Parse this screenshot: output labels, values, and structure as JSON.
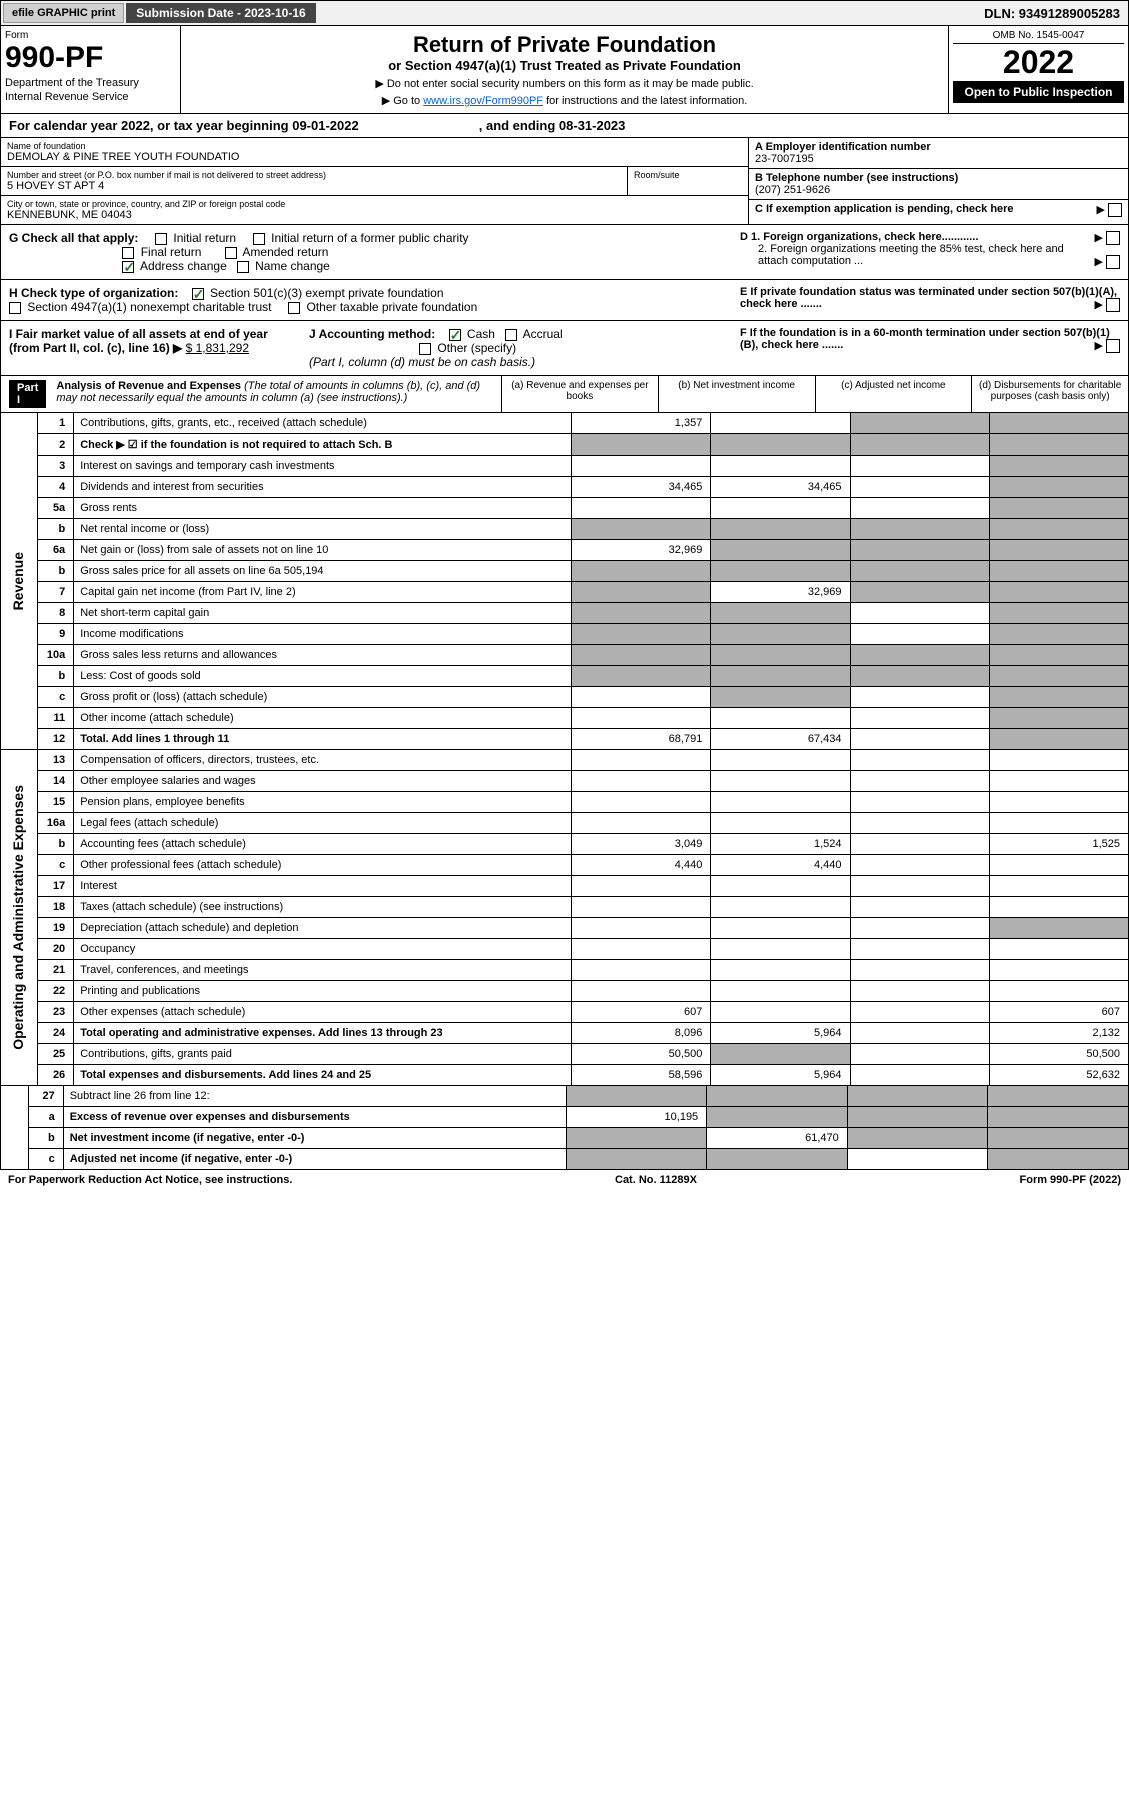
{
  "top": {
    "efile_btn": "efile GRAPHIC print",
    "submission": "Submission Date - 2023-10-16",
    "dln": "DLN: 93491289005283"
  },
  "header": {
    "form_label": "Form",
    "form_number": "990-PF",
    "dept": "Department of the Treasury",
    "irs": "Internal Revenue Service",
    "title": "Return of Private Foundation",
    "subtitle": "or Section 4947(a)(1) Trust Treated as Private Foundation",
    "note1": "▶ Do not enter social security numbers on this form as it may be made public.",
    "note2_pre": "▶ Go to ",
    "note2_link": "www.irs.gov/Form990PF",
    "note2_post": " for instructions and the latest information.",
    "omb": "OMB No. 1545-0047",
    "year": "2022",
    "open": "Open to Public Inspection"
  },
  "calyear": {
    "text": "For calendar year 2022, or tax year beginning 09-01-2022",
    "ending": ", and ending 08-31-2023"
  },
  "info": {
    "name_label": "Name of foundation",
    "name": "DEMOLAY & PINE TREE YOUTH FOUNDATIO",
    "addr_label": "Number and street (or P.O. box number if mail is not delivered to street address)",
    "addr": "5 HOVEY ST APT 4",
    "room_label": "Room/suite",
    "city_label": "City or town, state or province, country, and ZIP or foreign postal code",
    "city": "KENNEBUNK, ME  04043",
    "ein_label": "A Employer identification number",
    "ein": "23-7007195",
    "phone_label": "B Telephone number (see instructions)",
    "phone": "(207) 251-9626",
    "c_label": "C If exemption application is pending, check here",
    "d1": "D 1. Foreign organizations, check here............",
    "d2": "2. Foreign organizations meeting the 85% test, check here and attach computation ...",
    "e_label": "E  If private foundation status was terminated under section 507(b)(1)(A), check here .......",
    "f_label": "F  If the foundation is in a 60-month termination under section 507(b)(1)(B), check here ......."
  },
  "checks": {
    "g_label": "G Check all that apply:",
    "initial": "Initial return",
    "initial_former": "Initial return of a former public charity",
    "final": "Final return",
    "amended": "Amended return",
    "address": "Address change",
    "namechange": "Name change",
    "h_label": "H Check type of organization:",
    "h501c3": "Section 501(c)(3) exempt private foundation",
    "h4947": "Section 4947(a)(1) nonexempt charitable trust",
    "hother": "Other taxable private foundation",
    "i_label": "I Fair market value of all assets at end of year (from Part II, col. (c), line 16) ▶",
    "i_value": "$  1,831,292",
    "j_label": "J Accounting method:",
    "j_cash": "Cash",
    "j_accrual": "Accrual",
    "j_other": "Other (specify)",
    "j_note": "(Part I, column (d) must be on cash basis.)"
  },
  "part1": {
    "label": "Part I",
    "title": "Analysis of Revenue and Expenses",
    "title_note": " (The total of amounts in columns (b), (c), and (d) may not necessarily equal the amounts in column (a) (see instructions).)",
    "col_a": "(a)   Revenue and expenses per books",
    "col_b": "(b)   Net investment income",
    "col_c": "(c)   Adjusted net income",
    "col_d": "(d)  Disbursements for charitable purposes (cash basis only)"
  },
  "sidelabels": {
    "revenue": "Revenue",
    "expenses": "Operating and Administrative Expenses"
  },
  "rows": [
    {
      "n": "1",
      "d": "Contributions, gifts, grants, etc., received (attach schedule)",
      "a": "1,357",
      "b": "",
      "c": "shaded",
      "dcol": "shaded"
    },
    {
      "n": "2",
      "d": "Check ▶ ☑ if the foundation is not required to attach Sch. B",
      "a": "shaded",
      "b": "shaded",
      "c": "shaded",
      "dcol": "shaded",
      "bold": true
    },
    {
      "n": "3",
      "d": "Interest on savings and temporary cash investments",
      "a": "",
      "b": "",
      "c": "",
      "dcol": "shaded"
    },
    {
      "n": "4",
      "d": "Dividends and interest from securities",
      "a": "34,465",
      "b": "34,465",
      "c": "",
      "dcol": "shaded"
    },
    {
      "n": "5a",
      "d": "Gross rents",
      "a": "",
      "b": "",
      "c": "",
      "dcol": "shaded"
    },
    {
      "n": "b",
      "d": "Net rental income or (loss)",
      "a": "shaded",
      "b": "shaded",
      "c": "shaded",
      "dcol": "shaded"
    },
    {
      "n": "6a",
      "d": "Net gain or (loss) from sale of assets not on line 10",
      "a": "32,969",
      "b": "shaded",
      "c": "shaded",
      "dcol": "shaded"
    },
    {
      "n": "b",
      "d": "Gross sales price for all assets on line 6a             505,194",
      "a": "shaded",
      "b": "shaded",
      "c": "shaded",
      "dcol": "shaded"
    },
    {
      "n": "7",
      "d": "Capital gain net income (from Part IV, line 2)",
      "a": "shaded",
      "b": "32,969",
      "c": "shaded",
      "dcol": "shaded"
    },
    {
      "n": "8",
      "d": "Net short-term capital gain",
      "a": "shaded",
      "b": "shaded",
      "c": "",
      "dcol": "shaded"
    },
    {
      "n": "9",
      "d": "Income modifications",
      "a": "shaded",
      "b": "shaded",
      "c": "",
      "dcol": "shaded"
    },
    {
      "n": "10a",
      "d": "Gross sales less returns and allowances",
      "a": "shaded",
      "b": "shaded",
      "c": "shaded",
      "dcol": "shaded"
    },
    {
      "n": "b",
      "d": "Less: Cost of goods sold",
      "a": "shaded",
      "b": "shaded",
      "c": "shaded",
      "dcol": "shaded"
    },
    {
      "n": "c",
      "d": "Gross profit or (loss) (attach schedule)",
      "a": "",
      "b": "shaded",
      "c": "",
      "dcol": "shaded"
    },
    {
      "n": "11",
      "d": "Other income (attach schedule)",
      "a": "",
      "b": "",
      "c": "",
      "dcol": "shaded"
    },
    {
      "n": "12",
      "d": "Total. Add lines 1 through 11",
      "a": "68,791",
      "b": "67,434",
      "c": "",
      "dcol": "shaded",
      "bold": true
    }
  ],
  "exp_rows": [
    {
      "n": "13",
      "d": "Compensation of officers, directors, trustees, etc.",
      "a": "",
      "b": "",
      "c": "",
      "dcol": ""
    },
    {
      "n": "14",
      "d": "Other employee salaries and wages",
      "a": "",
      "b": "",
      "c": "",
      "dcol": ""
    },
    {
      "n": "15",
      "d": "Pension plans, employee benefits",
      "a": "",
      "b": "",
      "c": "",
      "dcol": ""
    },
    {
      "n": "16a",
      "d": "Legal fees (attach schedule)",
      "a": "",
      "b": "",
      "c": "",
      "dcol": ""
    },
    {
      "n": "b",
      "d": "Accounting fees (attach schedule)",
      "a": "3,049",
      "b": "1,524",
      "c": "",
      "dcol": "1,525"
    },
    {
      "n": "c",
      "d": "Other professional fees (attach schedule)",
      "a": "4,440",
      "b": "4,440",
      "c": "",
      "dcol": ""
    },
    {
      "n": "17",
      "d": "Interest",
      "a": "",
      "b": "",
      "c": "",
      "dcol": ""
    },
    {
      "n": "18",
      "d": "Taxes (attach schedule) (see instructions)",
      "a": "",
      "b": "",
      "c": "",
      "dcol": ""
    },
    {
      "n": "19",
      "d": "Depreciation (attach schedule) and depletion",
      "a": "",
      "b": "",
      "c": "",
      "dcol": "shaded"
    },
    {
      "n": "20",
      "d": "Occupancy",
      "a": "",
      "b": "",
      "c": "",
      "dcol": ""
    },
    {
      "n": "21",
      "d": "Travel, conferences, and meetings",
      "a": "",
      "b": "",
      "c": "",
      "dcol": ""
    },
    {
      "n": "22",
      "d": "Printing and publications",
      "a": "",
      "b": "",
      "c": "",
      "dcol": ""
    },
    {
      "n": "23",
      "d": "Other expenses (attach schedule)",
      "a": "607",
      "b": "",
      "c": "",
      "dcol": "607"
    },
    {
      "n": "24",
      "d": "Total operating and administrative expenses. Add lines 13 through 23",
      "a": "8,096",
      "b": "5,964",
      "c": "",
      "dcol": "2,132",
      "bold": true
    },
    {
      "n": "25",
      "d": "Contributions, gifts, grants paid",
      "a": "50,500",
      "b": "shaded",
      "c": "",
      "dcol": "50,500"
    },
    {
      "n": "26",
      "d": "Total expenses and disbursements. Add lines 24 and 25",
      "a": "58,596",
      "b": "5,964",
      "c": "",
      "dcol": "52,632",
      "bold": true
    }
  ],
  "bottom_rows": [
    {
      "n": "27",
      "d": "Subtract line 26 from line 12:",
      "a": "shaded",
      "b": "shaded",
      "c": "shaded",
      "dcol": "shaded"
    },
    {
      "n": "a",
      "d": "Excess of revenue over expenses and disbursements",
      "a": "10,195",
      "b": "shaded",
      "c": "shaded",
      "dcol": "shaded",
      "bold": true
    },
    {
      "n": "b",
      "d": "Net investment income (if negative, enter -0-)",
      "a": "shaded",
      "b": "61,470",
      "c": "shaded",
      "dcol": "shaded",
      "bold": true
    },
    {
      "n": "c",
      "d": "Adjusted net income (if negative, enter -0-)",
      "a": "shaded",
      "b": "shaded",
      "c": "",
      "dcol": "shaded",
      "bold": true
    }
  ],
  "footer": {
    "left": "For Paperwork Reduction Act Notice, see instructions.",
    "center": "Cat. No. 11289X",
    "right": "Form 990-PF (2022)"
  },
  "colors": {
    "shaded": "#b0b0b0",
    "link": "#0066cc",
    "check": "#2a7a2a"
  }
}
